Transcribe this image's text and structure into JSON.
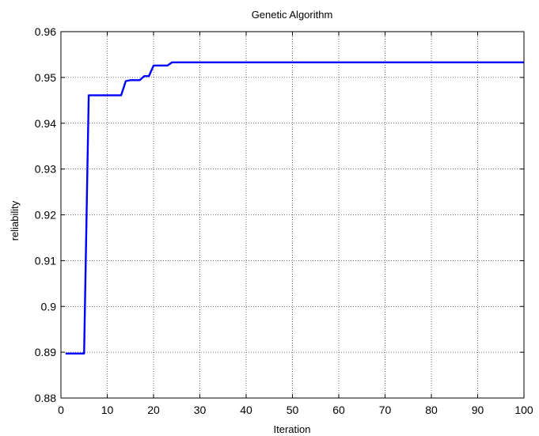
{
  "chart_data": {
    "type": "line",
    "title": "Genetic Algorithm",
    "xlabel": "Iteration",
    "ylabel": "reliability",
    "xlim": [
      0,
      100
    ],
    "ylim": [
      0.88,
      0.96
    ],
    "x_ticks": [
      0,
      10,
      20,
      30,
      40,
      50,
      60,
      70,
      80,
      90,
      100
    ],
    "x_tick_labels": [
      "0",
      "10",
      "20",
      "30",
      "40",
      "50",
      "60",
      "70",
      "80",
      "90",
      "100"
    ],
    "y_ticks": [
      0.88,
      0.89,
      0.9,
      0.91,
      0.92,
      0.93,
      0.94,
      0.95,
      0.96
    ],
    "y_tick_labels": [
      "0.88",
      "0.89",
      "0.9",
      "0.91",
      "0.92",
      "0.93",
      "0.94",
      "0.95",
      "0.96"
    ],
    "grid": true,
    "series": [
      {
        "color": "#0000ff",
        "x": [
          1,
          2,
          3,
          4,
          5,
          6,
          7,
          8,
          9,
          10,
          11,
          12,
          13,
          14,
          15,
          16,
          17,
          18,
          19,
          20,
          21,
          22,
          23,
          24,
          25,
          100
        ],
        "y": [
          0.8897,
          0.8897,
          0.8897,
          0.8897,
          0.8897,
          0.9461,
          0.9461,
          0.9461,
          0.9461,
          0.9461,
          0.9461,
          0.9461,
          0.9461,
          0.9492,
          0.9494,
          0.9494,
          0.9494,
          0.9503,
          0.9503,
          0.9526,
          0.9526,
          0.9526,
          0.9526,
          0.9533,
          0.9533,
          0.9533
        ]
      }
    ]
  }
}
